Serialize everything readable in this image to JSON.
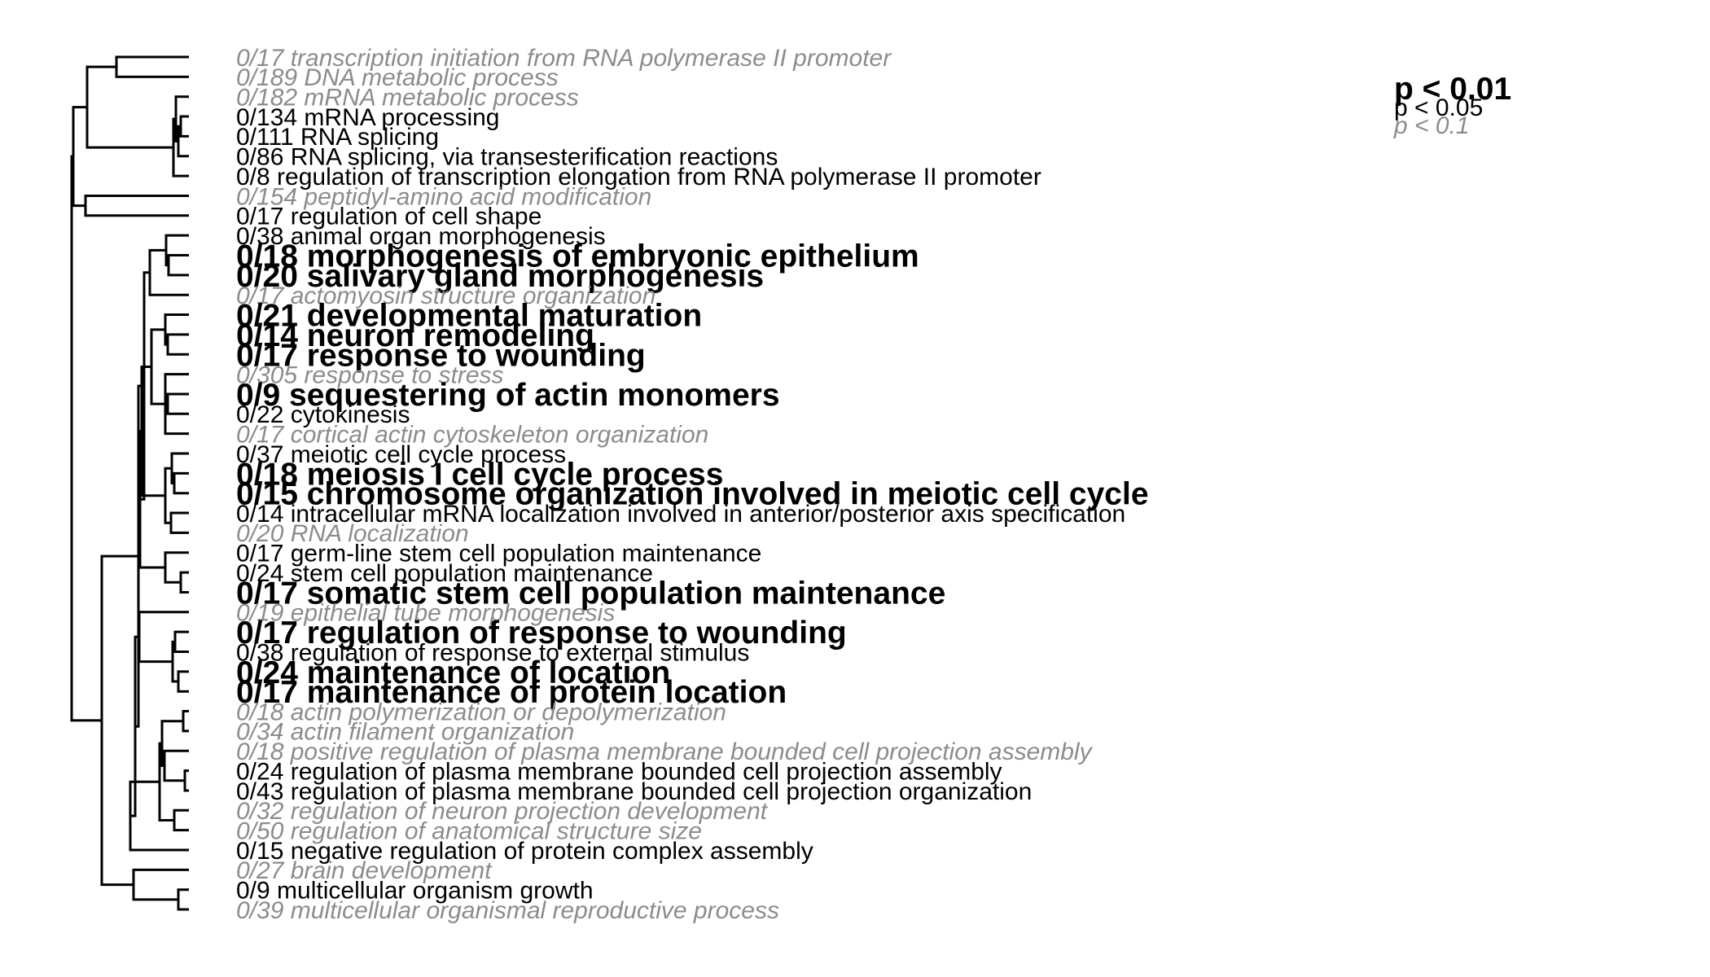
{
  "colors": {
    "sig_001": "#000000",
    "sig_005": "#000000",
    "sig_01": "#8c8c8c",
    "tree": "#000000"
  },
  "legend": [
    {
      "label": "p < 0.01",
      "level": "p001"
    },
    {
      "label": "p < 0.05",
      "level": "p005"
    },
    {
      "label": "p < 0.1",
      "level": "p01"
    }
  ],
  "terms": [
    {
      "label": "0/17 transcription initiation from RNA polymerase II promoter",
      "level": "p01"
    },
    {
      "label": "0/189 DNA metabolic process",
      "level": "p01"
    },
    {
      "label": "0/182 mRNA metabolic process",
      "level": "p01"
    },
    {
      "label": "0/134 mRNA processing",
      "level": "p005"
    },
    {
      "label": "0/111 RNA splicing",
      "level": "p005"
    },
    {
      "label": "0/86 RNA splicing, via transesterification reactions",
      "level": "p005"
    },
    {
      "label": "0/8 regulation of transcription elongation from RNA polymerase II promoter",
      "level": "p005"
    },
    {
      "label": "0/154 peptidyl-amino acid modification",
      "level": "p01"
    },
    {
      "label": "0/17 regulation of cell shape",
      "level": "p005"
    },
    {
      "label": "0/38 animal organ morphogenesis",
      "level": "p005"
    },
    {
      "label": "0/18 morphogenesis of embryonic epithelium",
      "level": "p001"
    },
    {
      "label": "0/20 salivary gland morphogenesis",
      "level": "p001"
    },
    {
      "label": "0/17 actomyosin structure organization",
      "level": "p01"
    },
    {
      "label": "0/21 developmental maturation",
      "level": "p001"
    },
    {
      "label": "0/14 neuron remodeling",
      "level": "p001"
    },
    {
      "label": "0/17 response to wounding",
      "level": "p001"
    },
    {
      "label": "0/305 response to stress",
      "level": "p01"
    },
    {
      "label": "0/9 sequestering of actin monomers",
      "level": "p001"
    },
    {
      "label": "0/22 cytokinesis",
      "level": "p005"
    },
    {
      "label": "0/17 cortical actin cytoskeleton organization",
      "level": "p01"
    },
    {
      "label": "0/37 meiotic cell cycle process",
      "level": "p005"
    },
    {
      "label": "0/18 meiosis I cell cycle process",
      "level": "p001"
    },
    {
      "label": "0/15 chromosome organization involved in meiotic cell cycle",
      "level": "p001"
    },
    {
      "label": "0/14 intracellular mRNA localization involved in anterior/posterior axis specification",
      "level": "p005"
    },
    {
      "label": "0/20 RNA localization",
      "level": "p01"
    },
    {
      "label": "0/17 germ-line stem cell population maintenance",
      "level": "p005"
    },
    {
      "label": "0/24 stem cell population maintenance",
      "level": "p005"
    },
    {
      "label": "0/17 somatic stem cell population maintenance",
      "level": "p001"
    },
    {
      "label": "0/19 epithelial tube morphogenesis",
      "level": "p01"
    },
    {
      "label": "0/17 regulation of response to wounding",
      "level": "p001"
    },
    {
      "label": "0/38 regulation of response to external stimulus",
      "level": "p005"
    },
    {
      "label": "0/24 maintenance of location",
      "level": "p001"
    },
    {
      "label": "0/17 maintenance of protein location",
      "level": "p001"
    },
    {
      "label": "0/18 actin polymerization or depolymerization",
      "level": "p01"
    },
    {
      "label": "0/34 actin filament organization",
      "level": "p01"
    },
    {
      "label": "0/18 positive regulation of plasma membrane bounded cell projection assembly",
      "level": "p01"
    },
    {
      "label": "0/24 regulation of plasma membrane bounded cell projection assembly",
      "level": "p005"
    },
    {
      "label": "0/43 regulation of plasma membrane bounded cell projection organization",
      "level": "p005"
    },
    {
      "label": "0/32 regulation of neuron projection development",
      "level": "p01"
    },
    {
      "label": "0/50 regulation of anatomical structure size",
      "level": "p01"
    },
    {
      "label": "0/15 negative regulation of protein complex assembly",
      "level": "p005"
    },
    {
      "label": "0/27 brain development",
      "level": "p01"
    },
    {
      "label": "0/9 multicellular organism growth",
      "level": "p005"
    },
    {
      "label": "0/39 multicellular organismal reproductive process",
      "level": "p01"
    }
  ]
}
